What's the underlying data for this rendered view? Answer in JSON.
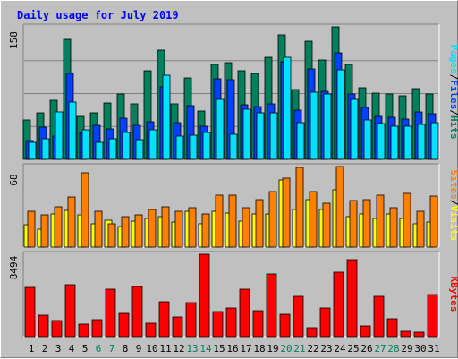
{
  "title": "Daily usage for July 2019",
  "colors": {
    "background": "#c0c0c0",
    "title": "#0000ff",
    "hits": "#00805c",
    "files": "#0040ff",
    "pages": "#00e0ff",
    "visits": "#ffff00",
    "sites": "#ff8000",
    "kbytes": "#ff0000",
    "weekend_day": "#00805c",
    "weekday": "#000000"
  },
  "chart_data": {
    "type": "bar",
    "days": [
      1,
      2,
      3,
      4,
      5,
      6,
      7,
      8,
      9,
      10,
      11,
      12,
      13,
      14,
      15,
      16,
      17,
      18,
      19,
      20,
      21,
      22,
      23,
      24,
      25,
      26,
      27,
      28,
      29,
      30,
      31
    ],
    "weekend_days": [
      6,
      7,
      13,
      14,
      20,
      21,
      27,
      28
    ],
    "panels": [
      {
        "id": "hits-files-pages",
        "max_label": "158",
        "ymax": 158,
        "legend": [
          {
            "text": "Pages",
            "color": "#00e0ff"
          },
          {
            "text": "/",
            "color": "#000000"
          },
          {
            "text": "Files",
            "color": "#0040ff"
          },
          {
            "text": "/",
            "color": "#000000"
          },
          {
            "text": "Hits",
            "color": "#00805c"
          }
        ],
        "series": [
          {
            "name": "Hits",
            "color": "#00805c",
            "values": [
              47,
              55,
              70,
              143,
              51,
              55,
              67,
              78,
              66,
              106,
              130,
              66,
              97,
              58,
              113,
              115,
              106,
              103,
              122,
              148,
              83,
              141,
              118,
              158,
              113,
              85,
              79,
              78,
              76,
              84,
              78
            ]
          },
          {
            "name": "Files",
            "color": "#0040ff",
            "values": [
              22,
              38,
              28,
              102,
              32,
              41,
              36,
              49,
              41,
              45,
              86,
              44,
              64,
              40,
              96,
              95,
              65,
              63,
              66,
              116,
              59,
              108,
              81,
              127,
              78,
              62,
              51,
              50,
              48,
              57,
              54
            ]
          },
          {
            "name": "Pages",
            "color": "#00e0ff",
            "values": [
              20,
              25,
              57,
              68,
              35,
              20,
              25,
              32,
              23,
              35,
              100,
              28,
              29,
              32,
              71,
              30,
              60,
              55,
              56,
              122,
              44,
              80,
              78,
              107,
              71,
              47,
              43,
              40,
              40,
              42,
              44
            ]
          }
        ]
      },
      {
        "id": "visits-sites",
        "max_label": "68",
        "ymax": 68,
        "legend": [
          {
            "text": "Sites",
            "color": "#ff8000"
          },
          {
            "text": "/",
            "color": "#000000"
          },
          {
            "text": "Visits",
            "color": "#ffff00"
          }
        ],
        "series": [
          {
            "name": "Visits",
            "color": "#ffff00",
            "values": [
              19,
              15,
              28,
              31,
              27,
              20,
              23,
              17,
              22,
              24,
              26,
              21,
              30,
              20,
              30,
              29,
              22,
              28,
              28,
              57,
              32,
              40,
              32,
              48,
              26,
              28,
              24,
              28,
              24,
              20,
              21
            ]
          },
          {
            "name": "Sites",
            "color": "#ff8000",
            "values": [
              30,
              27,
              34,
              42,
              63,
              30,
              20,
              26,
              27,
              32,
              34,
              30,
              33,
              28,
              44,
              44,
              33,
              40,
              47,
              58,
              67,
              47,
              37,
              68,
              39,
              40,
              44,
              33,
              45,
              30,
              43
            ]
          }
        ]
      },
      {
        "id": "kbytes",
        "max_label": "8494",
        "ymax": 8494,
        "legend": [
          {
            "text": "KBytes",
            "color": "#ff0000"
          }
        ],
        "series": [
          {
            "name": "KBytes",
            "color": "#ff0000",
            "values": [
              5060,
              2200,
              1650,
              5350,
              1250,
              1800,
              4850,
              2380,
              5150,
              1380,
              3630,
              2000,
              3480,
              8494,
              2600,
              2950,
              4850,
              2700,
              6420,
              2330,
              4170,
              900,
              3000,
              6670,
              7900,
              1140,
              4140,
              1850,
              550,
              450,
              4330
            ]
          }
        ]
      }
    ]
  }
}
